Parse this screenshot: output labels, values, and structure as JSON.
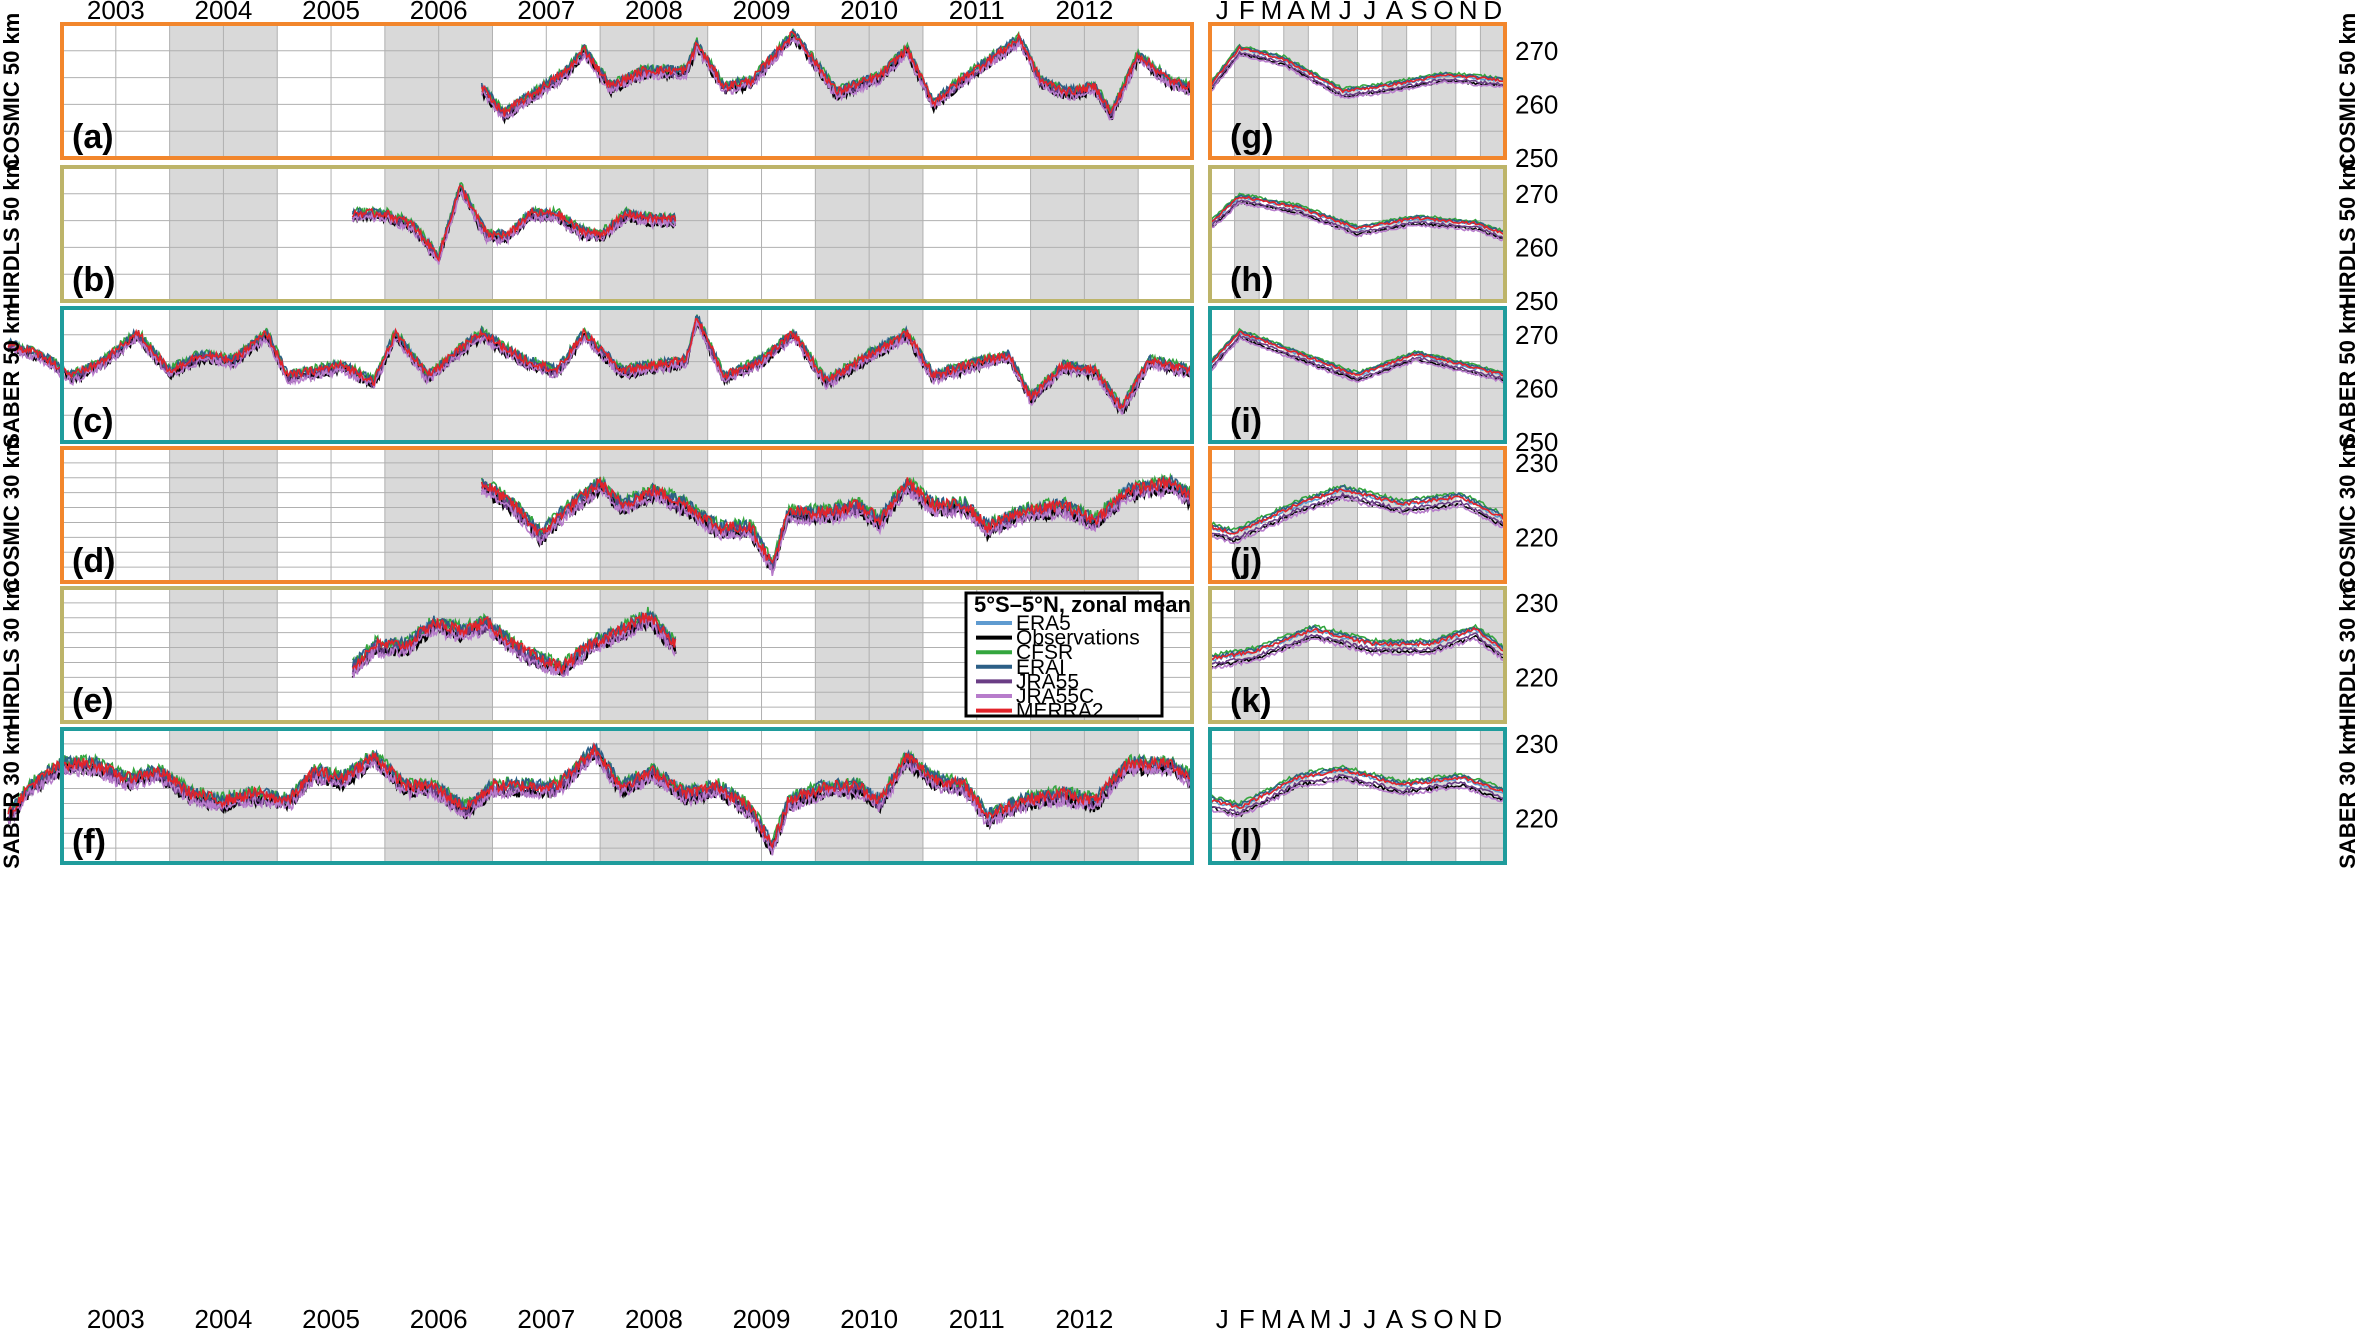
{
  "chart_data": {
    "type": "line",
    "colors": {
      "ERA5": "#5f9bd0",
      "Observations": "#000000",
      "CFSR": "#34a63e",
      "ERAI": "#2c5f86",
      "JRA55": "#6a3d85",
      "JRA55C": "#b77ccb",
      "MERRA2": "#e2232a",
      "orange_frame": "#f2862c",
      "olive_frame": "#bdb469",
      "teal_frame": "#1f9c9c",
      "shade": "#d9d9d9",
      "grid": "#b0b0b0"
    },
    "legend": {
      "title": "5°S–5°N, zonal mean",
      "entries": [
        "ERA5",
        "Observations",
        "CFSR",
        "ERAI",
        "JRA55",
        "JRA55C",
        "MERRA2"
      ]
    },
    "years": [
      "2003",
      "2004",
      "2005",
      "2006",
      "2007",
      "2008",
      "2009",
      "2010",
      "2011",
      "2012"
    ],
    "months": [
      "J",
      "F",
      "M",
      "A",
      "M",
      "J",
      "J",
      "A",
      "S",
      "O",
      "N",
      "D"
    ],
    "rows": [
      {
        "label": "(a)",
        "clim_label": "(g)",
        "ylabel": "COSMIC 50 km",
        "frame": "orange",
        "ylim": [
          250,
          275
        ],
        "yticks": [
          "250",
          "260",
          "270"
        ],
        "ts_start": 2006.4,
        "ts_end": 2013.0,
        "ts_anchors": [
          [
            2006.4,
            263
          ],
          [
            2006.6,
            258
          ],
          [
            2006.9,
            262
          ],
          [
            2007.2,
            266
          ],
          [
            2007.35,
            270
          ],
          [
            2007.6,
            263
          ],
          [
            2007.9,
            266
          ],
          [
            2008.3,
            266
          ],
          [
            2008.4,
            271
          ],
          [
            2008.65,
            263
          ],
          [
            2008.9,
            264
          ],
          [
            2009.3,
            273
          ],
          [
            2009.7,
            262
          ],
          [
            2010.1,
            265
          ],
          [
            2010.35,
            270
          ],
          [
            2010.6,
            260
          ],
          [
            2010.9,
            265
          ],
          [
            2011.4,
            272
          ],
          [
            2011.6,
            264
          ],
          [
            2011.85,
            262
          ],
          [
            2012.1,
            263
          ],
          [
            2012.25,
            258
          ],
          [
            2012.5,
            269
          ],
          [
            2012.8,
            264
          ],
          [
            2013.0,
            263
          ]
        ],
        "clim_anchors": [
          [
            0.0,
            263
          ],
          [
            0.1,
            270
          ],
          [
            0.25,
            268
          ],
          [
            0.45,
            262
          ],
          [
            0.6,
            263
          ],
          [
            0.8,
            265
          ],
          [
            1.0,
            264
          ]
        ]
      },
      {
        "label": "(b)",
        "clim_label": "(h)",
        "ylabel": "HIRDLS 50 km",
        "frame": "olive",
        "ylim": [
          250,
          275
        ],
        "yticks": [
          "250",
          "260",
          "270"
        ],
        "ts_start": 2005.2,
        "ts_end": 2008.2,
        "ts_anchors": [
          [
            2005.2,
            266
          ],
          [
            2005.5,
            266
          ],
          [
            2005.75,
            264
          ],
          [
            2006.0,
            258
          ],
          [
            2006.2,
            271
          ],
          [
            2006.45,
            262
          ],
          [
            2006.65,
            262
          ],
          [
            2006.85,
            266
          ],
          [
            2007.1,
            266
          ],
          [
            2007.3,
            263
          ],
          [
            2007.5,
            262
          ],
          [
            2007.75,
            266
          ],
          [
            2008.0,
            265
          ],
          [
            2008.2,
            265
          ]
        ],
        "clim_anchors": [
          [
            0.0,
            264
          ],
          [
            0.1,
            269
          ],
          [
            0.3,
            267
          ],
          [
            0.5,
            263
          ],
          [
            0.7,
            265
          ],
          [
            0.9,
            264
          ],
          [
            1.0,
            262
          ]
        ]
      },
      {
        "label": "(c)",
        "clim_label": "(i)",
        "ylabel": "SABER 50 km",
        "frame": "teal",
        "ylim": [
          250,
          275
        ],
        "yticks": [
          "250",
          "260",
          "270"
        ],
        "ts_start": 2002.0,
        "ts_end": 2013.0,
        "ts_anchors": [
          [
            2002.0,
            268
          ],
          [
            2002.3,
            266
          ],
          [
            2002.6,
            262
          ],
          [
            2002.9,
            265
          ],
          [
            2003.2,
            270
          ],
          [
            2003.5,
            263
          ],
          [
            2003.8,
            266
          ],
          [
            2004.1,
            265
          ],
          [
            2004.4,
            270
          ],
          [
            2004.6,
            262
          ],
          [
            2005.1,
            264
          ],
          [
            2005.4,
            261
          ],
          [
            2005.6,
            270
          ],
          [
            2005.9,
            262
          ],
          [
            2006.2,
            267
          ],
          [
            2006.4,
            270
          ],
          [
            2006.8,
            265
          ],
          [
            2007.1,
            263
          ],
          [
            2007.35,
            270
          ],
          [
            2007.7,
            263
          ],
          [
            2008.3,
            265
          ],
          [
            2008.4,
            273
          ],
          [
            2008.65,
            262
          ],
          [
            2009.0,
            265
          ],
          [
            2009.3,
            270
          ],
          [
            2009.6,
            261
          ],
          [
            2010.0,
            266
          ],
          [
            2010.35,
            270
          ],
          [
            2010.6,
            262
          ],
          [
            2010.9,
            264
          ],
          [
            2011.3,
            266
          ],
          [
            2011.5,
            258
          ],
          [
            2011.8,
            264
          ],
          [
            2012.1,
            263
          ],
          [
            2012.35,
            256
          ],
          [
            2012.6,
            265
          ],
          [
            2013.0,
            263
          ]
        ],
        "clim_anchors": [
          [
            0.0,
            264
          ],
          [
            0.1,
            270
          ],
          [
            0.3,
            266
          ],
          [
            0.5,
            262
          ],
          [
            0.7,
            266
          ],
          [
            0.85,
            264
          ],
          [
            1.0,
            262
          ]
        ]
      },
      {
        "label": "(d)",
        "clim_label": "(j)",
        "ylabel": "COSMIC 30 km",
        "frame": "orange",
        "ylim": [
          214,
          232
        ],
        "yticks": [
          "220",
          "230"
        ],
        "ts_start": 2006.4,
        "ts_end": 2013.0,
        "ts_anchors": [
          [
            2006.4,
            227
          ],
          [
            2006.7,
            224
          ],
          [
            2006.95,
            220
          ],
          [
            2007.15,
            223
          ],
          [
            2007.5,
            227
          ],
          [
            2007.7,
            224
          ],
          [
            2008.0,
            226
          ],
          [
            2008.3,
            224
          ],
          [
            2008.6,
            221
          ],
          [
            2008.9,
            221
          ],
          [
            2009.1,
            216
          ],
          [
            2009.25,
            223
          ],
          [
            2009.6,
            223
          ],
          [
            2009.9,
            224
          ],
          [
            2010.1,
            222
          ],
          [
            2010.35,
            227
          ],
          [
            2010.6,
            224
          ],
          [
            2010.9,
            224
          ],
          [
            2011.1,
            221
          ],
          [
            2011.4,
            223
          ],
          [
            2011.8,
            224
          ],
          [
            2012.1,
            222
          ],
          [
            2012.4,
            226
          ],
          [
            2012.8,
            227
          ],
          [
            2013.0,
            225
          ]
        ],
        "clim_anchors": [
          [
            0.0,
            221
          ],
          [
            0.08,
            220
          ],
          [
            0.3,
            224
          ],
          [
            0.45,
            226
          ],
          [
            0.65,
            224
          ],
          [
            0.85,
            225
          ],
          [
            1.0,
            222
          ]
        ]
      },
      {
        "label": "(e)",
        "clim_label": "(k)",
        "ylabel": "HIRDLS 30 km",
        "frame": "olive",
        "ylim": [
          214,
          232
        ],
        "yticks": [
          "220",
          "230"
        ],
        "ts_start": 2005.2,
        "ts_end": 2008.2,
        "ts_anchors": [
          [
            2005.2,
            221
          ],
          [
            2005.4,
            224
          ],
          [
            2005.7,
            224
          ],
          [
            2005.95,
            227
          ],
          [
            2006.2,
            226
          ],
          [
            2006.45,
            227
          ],
          [
            2006.7,
            224
          ],
          [
            2006.95,
            222
          ],
          [
            2007.15,
            221
          ],
          [
            2007.4,
            224
          ],
          [
            2007.7,
            226
          ],
          [
            2007.95,
            228
          ],
          [
            2008.2,
            224
          ]
        ],
        "clim_anchors": [
          [
            0.0,
            222
          ],
          [
            0.15,
            223
          ],
          [
            0.35,
            226
          ],
          [
            0.55,
            224
          ],
          [
            0.75,
            224
          ],
          [
            0.9,
            226
          ],
          [
            1.0,
            223
          ]
        ]
      },
      {
        "label": "(f)",
        "clim_label": "(l)",
        "ylabel": "SABER 30 km",
        "frame": "teal",
        "ylim": [
          214,
          232
        ],
        "yticks": [
          "220",
          "230"
        ],
        "ts_start": 2002.0,
        "ts_end": 2013.0,
        "ts_anchors": [
          [
            2002.0,
            220
          ],
          [
            2002.2,
            224
          ],
          [
            2002.5,
            227
          ],
          [
            2002.8,
            227
          ],
          [
            2003.1,
            225
          ],
          [
            2003.4,
            226
          ],
          [
            2003.7,
            223
          ],
          [
            2004.0,
            222
          ],
          [
            2004.3,
            223
          ],
          [
            2004.6,
            222
          ],
          [
            2004.85,
            226
          ],
          [
            2005.1,
            225
          ],
          [
            2005.4,
            228
          ],
          [
            2005.7,
            224
          ],
          [
            2005.95,
            224
          ],
          [
            2006.25,
            221
          ],
          [
            2006.5,
            224
          ],
          [
            2006.8,
            224
          ],
          [
            2007.1,
            224
          ],
          [
            2007.45,
            229
          ],
          [
            2007.7,
            224
          ],
          [
            2008.0,
            226
          ],
          [
            2008.3,
            223
          ],
          [
            2008.6,
            224
          ],
          [
            2008.9,
            221
          ],
          [
            2009.1,
            216
          ],
          [
            2009.25,
            222
          ],
          [
            2009.6,
            224
          ],
          [
            2009.9,
            224
          ],
          [
            2010.1,
            222
          ],
          [
            2010.35,
            228
          ],
          [
            2010.6,
            225
          ],
          [
            2010.9,
            224
          ],
          [
            2011.1,
            220
          ],
          [
            2011.4,
            222
          ],
          [
            2011.8,
            223
          ],
          [
            2012.1,
            222
          ],
          [
            2012.4,
            227
          ],
          [
            2012.8,
            227
          ],
          [
            2013.0,
            225
          ]
        ],
        "clim_anchors": [
          [
            0.0,
            222
          ],
          [
            0.1,
            221
          ],
          [
            0.3,
            225
          ],
          [
            0.45,
            226
          ],
          [
            0.65,
            224
          ],
          [
            0.85,
            225
          ],
          [
            1.0,
            223
          ]
        ]
      }
    ],
    "series_offsets": {
      "ERA5": 0.5,
      "Observations": -0.7,
      "CFSR": 1.2,
      "ERAI": 0.9,
      "JRA55": -0.3,
      "JRA55C": -1.0,
      "MERRA2": 0.6
    }
  }
}
